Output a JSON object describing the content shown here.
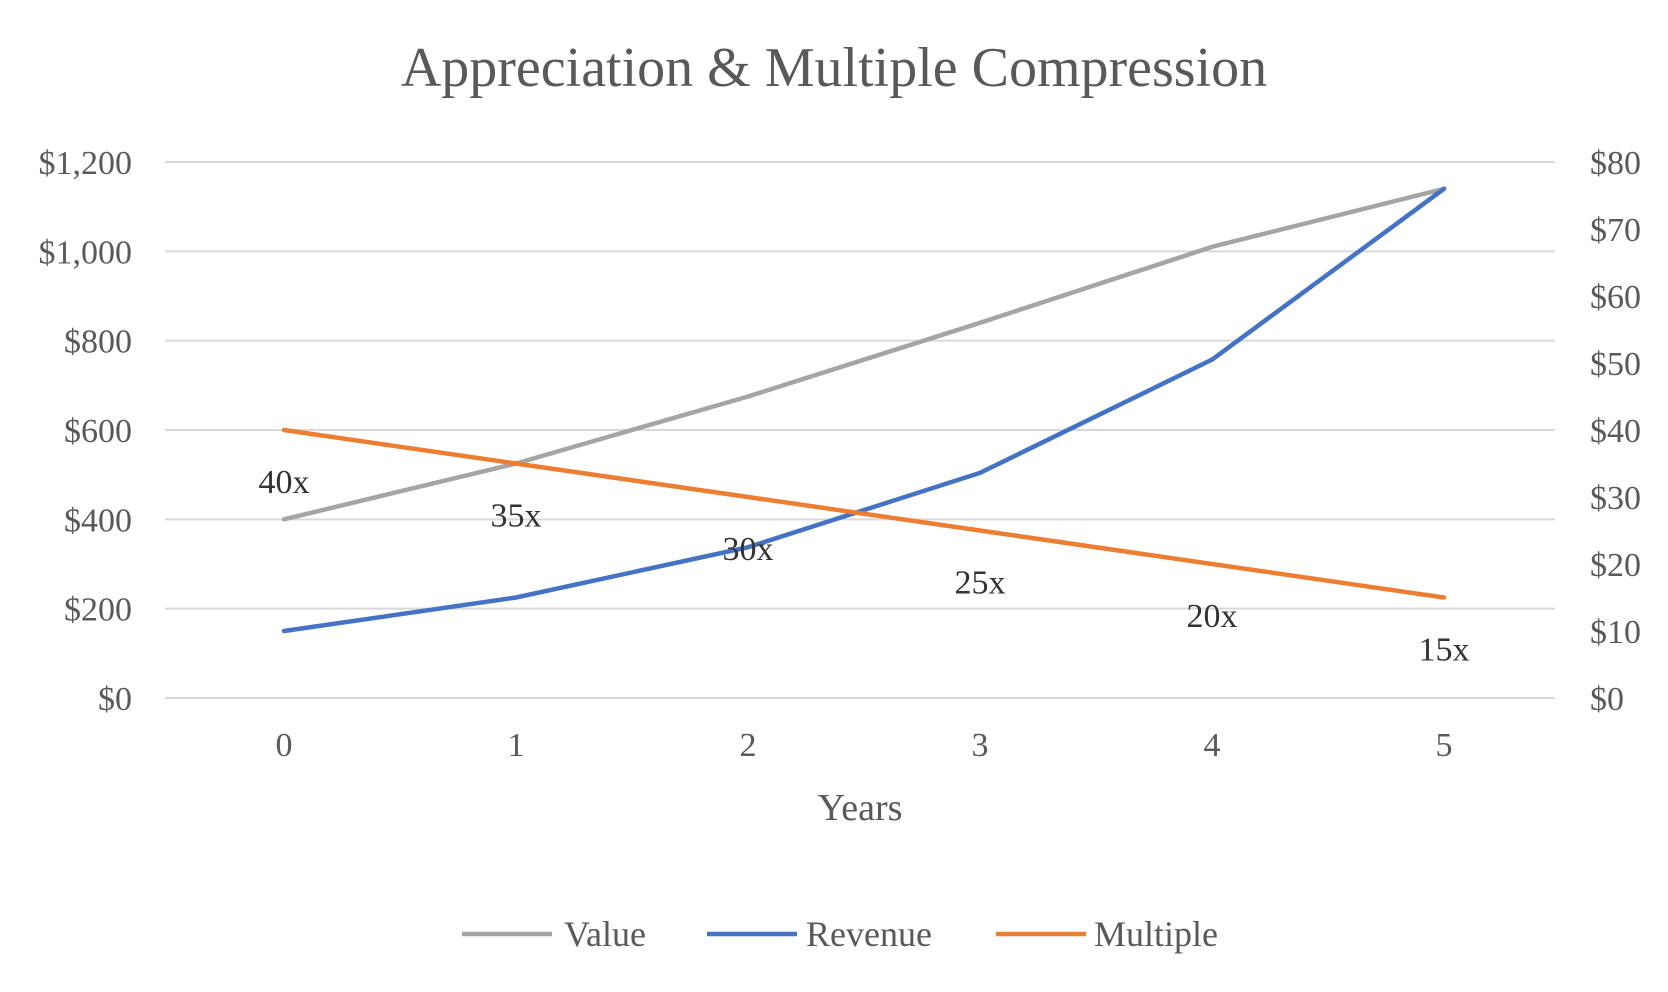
{
  "chart_data": {
    "type": "line",
    "title": "Appreciation & Multiple Compression",
    "xlabel": "Years",
    "ylabel": "",
    "y2label": "",
    "categories": [
      "0",
      "1",
      "2",
      "3",
      "4",
      "5"
    ],
    "ylim": [
      0,
      1200
    ],
    "y_ticks": [
      0,
      200,
      400,
      600,
      800,
      1000,
      1200
    ],
    "y_tick_labels": [
      "$0",
      "$200",
      "$400",
      "$600",
      "$800",
      "$1,000",
      "$1,200"
    ],
    "y2lim": [
      0,
      80
    ],
    "y2_ticks": [
      0,
      10,
      20,
      30,
      40,
      50,
      60,
      70,
      80
    ],
    "y2_tick_labels": [
      "$0",
      "$10",
      "$20",
      "$30",
      "$40",
      "$50",
      "$60",
      "$70",
      "$80"
    ],
    "grid": true,
    "legend_position": "bottom",
    "series": [
      {
        "name": "Value",
        "axis": "left",
        "color": "#A5A5A5",
        "values": [
          400,
          525,
          675,
          840,
          1010,
          1140
        ]
      },
      {
        "name": "Revenue",
        "axis": "right",
        "color": "#4472C4",
        "values": [
          10,
          15,
          22.5,
          33.6,
          50.5,
          76
        ]
      },
      {
        "name": "Multiple",
        "axis": "left",
        "color": "#ED7D31",
        "values": [
          600,
          525,
          450,
          375,
          300,
          225
        ]
      }
    ],
    "data_labels": [
      "40x",
      "35x",
      "30x",
      "25x",
      "20x",
      "15x"
    ]
  }
}
